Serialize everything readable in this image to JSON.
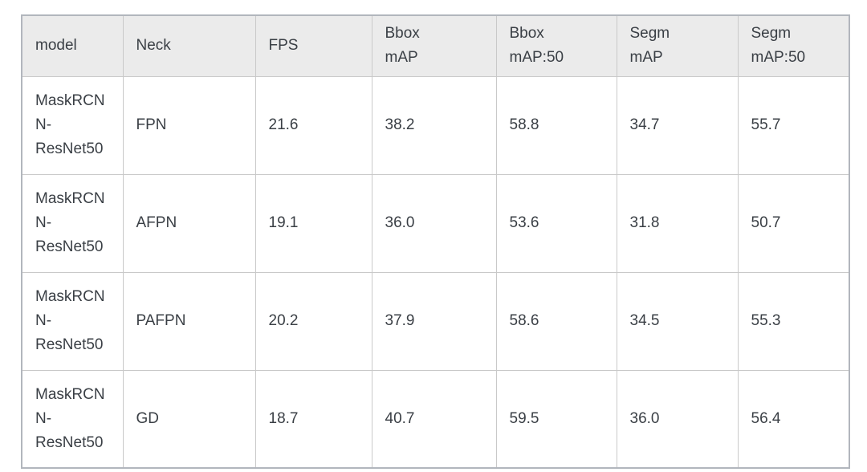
{
  "table": {
    "columns": [
      {
        "key": "model",
        "label": "model"
      },
      {
        "key": "neck",
        "label": "Neck"
      },
      {
        "key": "fps",
        "label": "FPS"
      },
      {
        "key": "bbox_map",
        "label": "Bbox\nmAP"
      },
      {
        "key": "bbox_map50",
        "label": "Bbox\nmAP:50"
      },
      {
        "key": "segm_map",
        "label": "Segm\nmAP"
      },
      {
        "key": "segm_map50",
        "label": "Segm\nmAP:50"
      }
    ],
    "rows": [
      {
        "model": "MaskRCNN-ResNet50",
        "neck": "FPN",
        "fps": "21.6",
        "bbox_map": "38.2",
        "bbox_map50": "58.8",
        "segm_map": "34.7",
        "segm_map50": "55.7"
      },
      {
        "model": "MaskRCNN-ResNet50",
        "neck": "AFPN",
        "fps": "19.1",
        "bbox_map": "36.0",
        "bbox_map50": "53.6",
        "segm_map": "31.8",
        "segm_map50": "50.7"
      },
      {
        "model": "MaskRCNN-ResNet50",
        "neck": "PAFPN",
        "fps": "20.2",
        "bbox_map": "37.9",
        "bbox_map50": "58.6",
        "segm_map": "34.5",
        "segm_map50": "55.3"
      },
      {
        "model": "MaskRCNN-ResNet50",
        "neck": "GD",
        "fps": "18.7",
        "bbox_map": "40.7",
        "bbox_map50": "59.5",
        "segm_map": "36.0",
        "segm_map50": "56.4"
      }
    ]
  },
  "colors": {
    "header_bg": "#ebebeb",
    "grid_line": "#c9c9c9",
    "outer_border": "#b2b6bd",
    "text": "#3a3f45"
  }
}
